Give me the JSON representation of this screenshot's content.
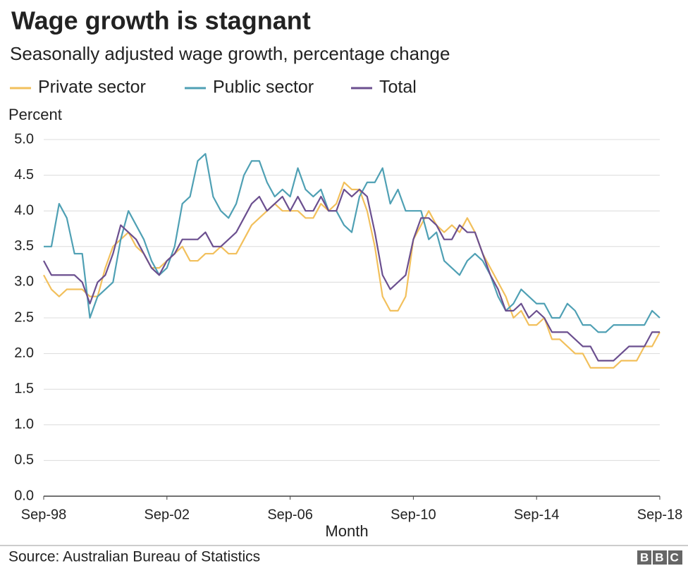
{
  "chart_data": {
    "type": "line",
    "title": "Wage growth is stagnant",
    "subtitle": "Seasonally adjusted wage growth, percentage change",
    "y_label": "Percent",
    "x_label": "Month",
    "source": "Source: Australian Bureau of Statistics",
    "logo": "BBC",
    "grid": true,
    "categories": [
      "Sep-98",
      null,
      null,
      null,
      null,
      null,
      null,
      null,
      null,
      null,
      null,
      null,
      null,
      null,
      null,
      null,
      "Sep-02",
      null,
      null,
      null,
      null,
      null,
      null,
      null,
      null,
      null,
      null,
      null,
      null,
      null,
      null,
      null,
      "Sep-06",
      null,
      null,
      null,
      null,
      null,
      null,
      null,
      null,
      null,
      null,
      null,
      null,
      null,
      null,
      null,
      "Sep-10",
      null,
      null,
      null,
      null,
      null,
      null,
      null,
      null,
      null,
      null,
      null,
      null,
      null,
      null,
      null,
      "Sep-14",
      null,
      null,
      null,
      null,
      null,
      null,
      null,
      null,
      null,
      null,
      null,
      null,
      null,
      null,
      null,
      "Sep-18"
    ],
    "ylim": [
      0,
      5
    ],
    "yticks": [
      {
        "value": 0,
        "label": "0.0"
      },
      0.5,
      {
        "value": 1,
        "label": "1.0"
      },
      1.5,
      {
        "value": 2,
        "label": "2.0"
      },
      2.5,
      {
        "value": 3,
        "label": "3.0"
      },
      3.5,
      {
        "value": 4,
        "label": "4.0"
      },
      4.5,
      {
        "value": 5,
        "label": "5.0"
      }
    ],
    "series": [
      {
        "name": "Private sector",
        "color": "#f2c05c",
        "values": [
          3.1,
          2.9,
          2.8,
          2.9,
          2.9,
          2.9,
          2.8,
          2.8,
          3.2,
          3.5,
          3.6,
          3.7,
          3.5,
          3.4,
          3.2,
          3.2,
          3.3,
          3.4,
          3.5,
          3.3,
          3.3,
          3.4,
          3.4,
          3.5,
          3.4,
          3.4,
          3.6,
          3.8,
          3.9,
          4.0,
          4.1,
          4.0,
          4.0,
          4.0,
          3.9,
          3.9,
          4.1,
          4.0,
          4.1,
          4.4,
          4.3,
          4.3,
          4.0,
          3.5,
          2.8,
          2.6,
          2.6,
          2.8,
          3.6,
          3.8,
          4.0,
          3.8,
          3.7,
          3.8,
          3.7,
          3.9,
          3.7,
          3.4,
          3.2,
          3.0,
          2.8,
          2.5,
          2.6,
          2.4,
          2.4,
          2.5,
          2.2,
          2.2,
          2.1,
          2.0,
          2.0,
          1.8,
          1.8,
          1.8,
          1.8,
          1.9,
          1.9,
          1.9,
          2.1,
          2.1,
          2.3
        ]
      },
      {
        "name": "Public sector",
        "color": "#4fa0b4",
        "values": [
          3.5,
          3.5,
          4.1,
          3.9,
          3.4,
          3.4,
          2.5,
          2.8,
          2.9,
          3.0,
          3.6,
          4.0,
          3.8,
          3.6,
          3.3,
          3.1,
          3.2,
          3.5,
          4.1,
          4.2,
          4.7,
          4.8,
          4.2,
          4.0,
          3.9,
          4.1,
          4.5,
          4.7,
          4.7,
          4.4,
          4.2,
          4.3,
          4.2,
          4.6,
          4.3,
          4.2,
          4.3,
          4.0,
          4.0,
          3.8,
          3.7,
          4.2,
          4.4,
          4.4,
          4.6,
          4.1,
          4.3,
          4.0,
          4.0,
          4.0,
          3.6,
          3.7,
          3.3,
          3.2,
          3.1,
          3.3,
          3.4,
          3.3,
          3.1,
          2.8,
          2.6,
          2.7,
          2.9,
          2.8,
          2.7,
          2.7,
          2.5,
          2.5,
          2.7,
          2.6,
          2.4,
          2.4,
          2.3,
          2.3,
          2.4,
          2.4,
          2.4,
          2.4,
          2.4,
          2.6,
          2.5
        ]
      },
      {
        "name": "Total",
        "color": "#6b4f8f",
        "values": [
          3.3,
          3.1,
          3.1,
          3.1,
          3.1,
          3.0,
          2.7,
          3.0,
          3.1,
          3.4,
          3.8,
          3.7,
          3.6,
          3.4,
          3.2,
          3.1,
          3.3,
          3.4,
          3.6,
          3.6,
          3.6,
          3.7,
          3.5,
          3.5,
          3.6,
          3.7,
          3.9,
          4.1,
          4.2,
          4.0,
          4.1,
          4.2,
          4.0,
          4.2,
          4.0,
          4.0,
          4.2,
          4.0,
          4.0,
          4.3,
          4.2,
          4.3,
          4.2,
          3.7,
          3.1,
          2.9,
          3.0,
          3.1,
          3.6,
          3.9,
          3.9,
          3.8,
          3.6,
          3.6,
          3.8,
          3.7,
          3.7,
          3.4,
          3.1,
          2.9,
          2.6,
          2.6,
          2.7,
          2.5,
          2.6,
          2.5,
          2.3,
          2.3,
          2.3,
          2.2,
          2.1,
          2.1,
          1.9,
          1.9,
          1.9,
          2.0,
          2.1,
          2.1,
          2.1,
          2.3,
          2.3
        ]
      }
    ]
  }
}
